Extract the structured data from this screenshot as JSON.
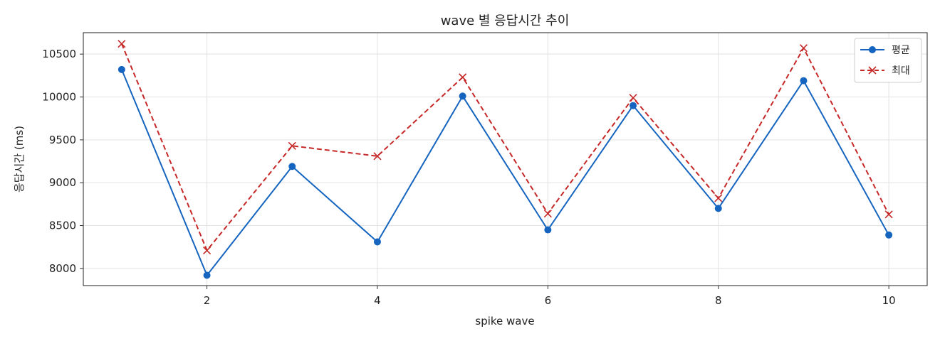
{
  "chart_data": {
    "type": "line",
    "title": "wave 별 응답시간 추이",
    "xlabel": "spike wave",
    "ylabel": "응답시간 (ms)",
    "x": [
      1,
      2,
      3,
      4,
      5,
      6,
      7,
      8,
      9,
      10
    ],
    "xlim": [
      0.55,
      10.45
    ],
    "ylim": [
      7800,
      10750
    ],
    "xticks": [
      2,
      4,
      6,
      8,
      10
    ],
    "yticks": [
      8000,
      8500,
      9000,
      9500,
      10000,
      10500
    ],
    "grid": true,
    "legend_position": "top-right",
    "series": [
      {
        "name": "평균",
        "color": "#1565c0",
        "line_style": "solid",
        "marker": "circle",
        "values": [
          10320,
          7920,
          9190,
          8310,
          10010,
          8450,
          9900,
          8700,
          10190,
          8390
        ]
      },
      {
        "name": "최대",
        "color": "#c62828",
        "line_style": "dashed",
        "marker": "x",
        "values": [
          10620,
          8210,
          9430,
          9310,
          10230,
          8640,
          9990,
          8820,
          10570,
          8630
        ]
      }
    ]
  }
}
